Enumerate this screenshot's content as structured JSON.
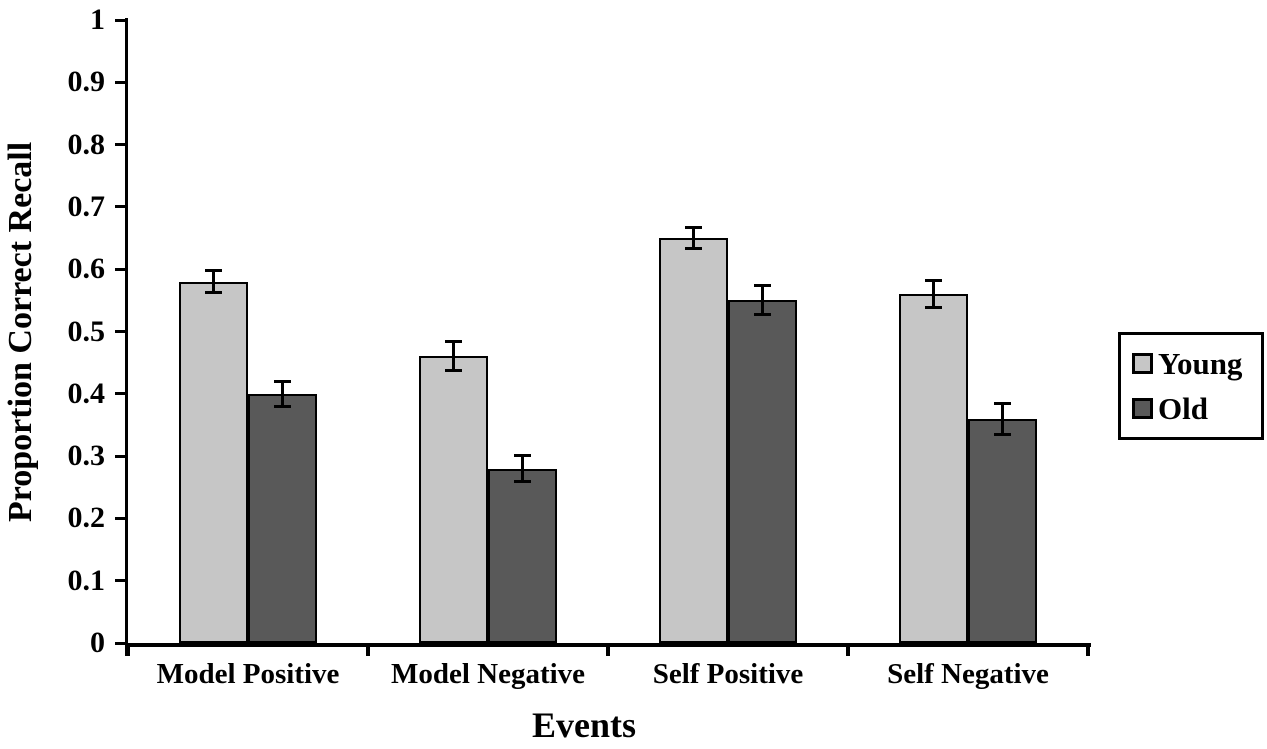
{
  "chart_data": {
    "type": "bar",
    "title": "",
    "xlabel": "Events",
    "ylabel": "Proportion Correct Recall",
    "categories": [
      "Model Positive",
      "Model Negative",
      "Self Positive",
      "Self Negative"
    ],
    "series": [
      {
        "name": "Young",
        "color": "#c6c6c6",
        "values": [
          0.58,
          0.46,
          0.65,
          0.56
        ],
        "errors": [
          0.018,
          0.024,
          0.018,
          0.022
        ]
      },
      {
        "name": "Old",
        "color": "#595959",
        "values": [
          0.4,
          0.28,
          0.55,
          0.36
        ],
        "errors": [
          0.021,
          0.022,
          0.024,
          0.026
        ]
      }
    ],
    "ylim": [
      0,
      1
    ],
    "y_ticks": [
      "0",
      "0.1",
      "0.2",
      "0.3",
      "0.4",
      "0.5",
      "0.6",
      "0.7",
      "0.8",
      "0.9",
      "1"
    ],
    "grid": false,
    "legend_position": "right",
    "bar_outline_color": "#000000",
    "error_bar_color": "#000000",
    "axis_color": "#000000"
  }
}
